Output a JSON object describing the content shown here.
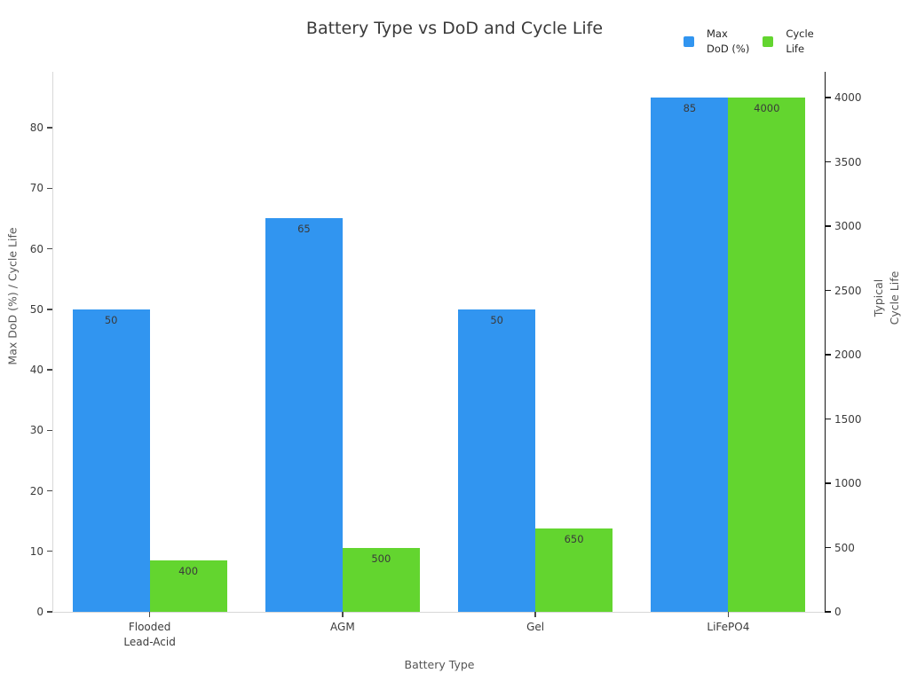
{
  "chart_data": {
    "type": "bar",
    "title": "Battery Type vs DoD and Cycle Life",
    "xlabel": "Battery Type",
    "left_axis_label": "Max DoD (%) / Cycle Life",
    "right_axis_label_lines": [
      "Typical",
      "Cycle Life"
    ],
    "categories": [
      {
        "slug": "flooded-lead-acid",
        "label_lines": [
          "Flooded",
          "Lead-Acid"
        ]
      },
      {
        "slug": "agm",
        "label_lines": [
          "AGM"
        ]
      },
      {
        "slug": "gel",
        "label_lines": [
          "Gel"
        ]
      },
      {
        "slug": "lifepo4",
        "label_lines": [
          "LiFePO4"
        ]
      }
    ],
    "series": [
      {
        "name": "Max DoD (%)",
        "slug": "max-dod",
        "legend_lines": [
          "Max",
          "DoD (%)"
        ],
        "axis": "left",
        "color": "#3195f0",
        "values": [
          50,
          65,
          50,
          85
        ]
      },
      {
        "name": "Cycle Life",
        "slug": "cycle-life",
        "legend_lines": [
          "Cycle",
          "Life"
        ],
        "axis": "right",
        "color": "#63d52f",
        "values": [
          400,
          500,
          650,
          4000
        ]
      }
    ],
    "left_axis": {
      "ticks": [
        0,
        10,
        20,
        30,
        40,
        50,
        60,
        70,
        80
      ],
      "range": [
        0,
        89.25
      ]
    },
    "right_axis": {
      "ticks": [
        0,
        500,
        1000,
        1500,
        2000,
        2500,
        3000,
        3500,
        4000
      ],
      "range": [
        0,
        4200
      ]
    },
    "grid": false,
    "legend_position": "top-right",
    "value_labels": true,
    "bar_group_width_fraction": 0.8
  },
  "colors": {
    "bar_blue": "#3195f0",
    "bar_green": "#63d52f",
    "title_text": "#3a3a3a",
    "tick_label_text": "#3c3c3c",
    "axis_label_text": "#555555",
    "value_label_text": "#3a3a3a",
    "spine_light": "#d8d8d8",
    "spine_dark": "#161616",
    "tick_mark_light": "#4a4a4a",
    "background": "#ffffff"
  }
}
